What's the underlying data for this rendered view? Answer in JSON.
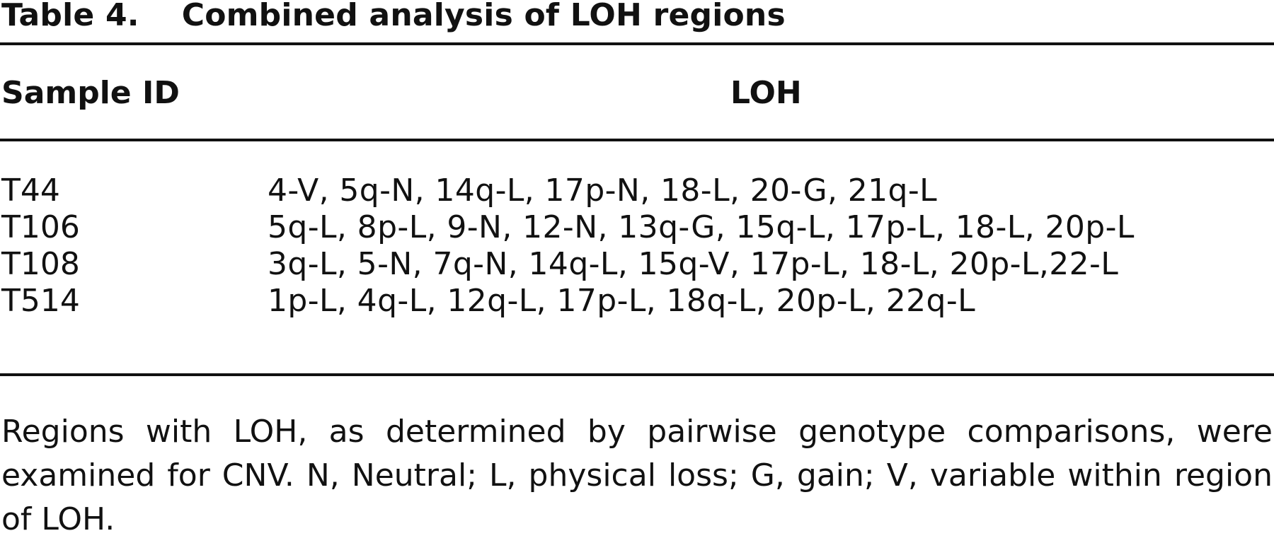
{
  "table": {
    "label": "Table 4.",
    "title": "Combined analysis of LOH regions",
    "columns": {
      "sample_id": "Sample ID",
      "loh": "LOH"
    },
    "rows": [
      {
        "sample_id": "T44",
        "loh": "4-V, 5q-N, 14q-L, 17p-N, 18-L, 20-G, 21q-L"
      },
      {
        "sample_id": "T106",
        "loh": "5q-L, 8p-L, 9-N, 12-N, 13q-G, 15q-L, 17p-L, 18-L, 20p-L"
      },
      {
        "sample_id": "T108",
        "loh": "3q-L, 5-N, 7q-N, 14q-L, 15q-V, 17p-L, 18-L, 20p-L,22-L"
      },
      {
        "sample_id": "T514",
        "loh": "1p-L, 4q-L, 12q-L, 17p-L, 18q-L, 20p-L, 22q-L"
      }
    ],
    "footnote": "Regions with LOH, as determined by pairwise genotype comparisons, were examined for CNV. N, Neutral; L, physical loss; G, gain; V, variable within region of LOH."
  }
}
